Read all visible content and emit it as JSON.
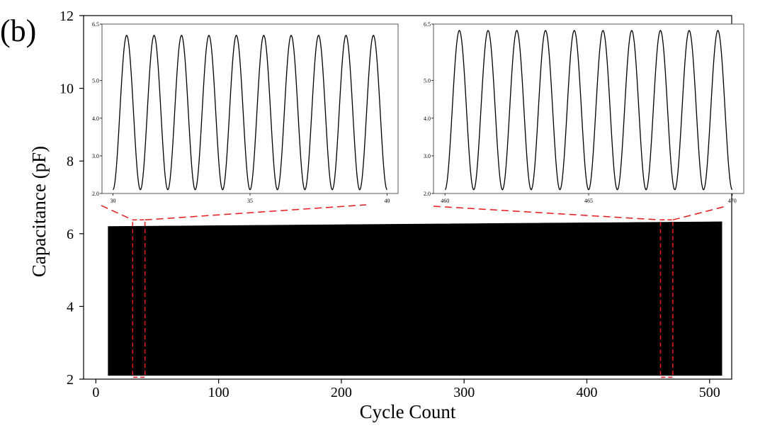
{
  "panel_label": "(b)",
  "chart_data": [
    {
      "type": "line",
      "role": "main",
      "xlabel": "Cycle Count",
      "ylabel": "Capacitance (pF)",
      "xlim": [
        -10,
        518
      ],
      "ylim": [
        2,
        12
      ],
      "xticks": [
        0,
        100,
        200,
        300,
        400,
        500
      ],
      "yticks": [
        2,
        4,
        6,
        8,
        10,
        12
      ],
      "grid": false,
      "series": [
        {
          "x_range": [
            10,
            510
          ],
          "min": 2.1,
          "max_start": 6.2,
          "max_end": 6.33,
          "color": "#000000"
        }
      ],
      "highlight_boxes": [
        {
          "x_range": [
            30,
            40
          ],
          "y_range": [
            2.05,
            6.38
          ],
          "color": "#e8191c"
        },
        {
          "x_range": [
            460,
            470
          ],
          "y_range": [
            2.05,
            6.38
          ],
          "color": "#e8191c"
        }
      ]
    },
    {
      "type": "line",
      "role": "inset",
      "xlim": [
        29.6,
        40.4
      ],
      "ylim": [
        2.0,
        6.5
      ],
      "xticks": [
        30,
        35,
        40
      ],
      "yticks": [
        2.0,
        3.0,
        4.0,
        5.0,
        6.5
      ],
      "ytick_labels": [
        "2.0",
        "3.0",
        "4.0",
        "5.0",
        "6.5"
      ],
      "series": [
        {
          "x_range": [
            30,
            40
          ],
          "cycles": 10,
          "min": 2.1,
          "max": 6.2,
          "color": "#000000"
        }
      ]
    },
    {
      "type": "line",
      "role": "inset",
      "xlim": [
        459.6,
        470.4
      ],
      "ylim": [
        2.0,
        6.5
      ],
      "xticks": [
        460,
        465,
        470
      ],
      "yticks": [
        2.0,
        3.0,
        4.0,
        5.0,
        6.5
      ],
      "ytick_labels": [
        "2.0",
        "3.0",
        "4.0",
        "5.0",
        "6.5"
      ],
      "series": [
        {
          "x_range": [
            460,
            470
          ],
          "cycles": 10,
          "min": 2.1,
          "max": 6.33,
          "color": "#000000"
        }
      ]
    }
  ]
}
